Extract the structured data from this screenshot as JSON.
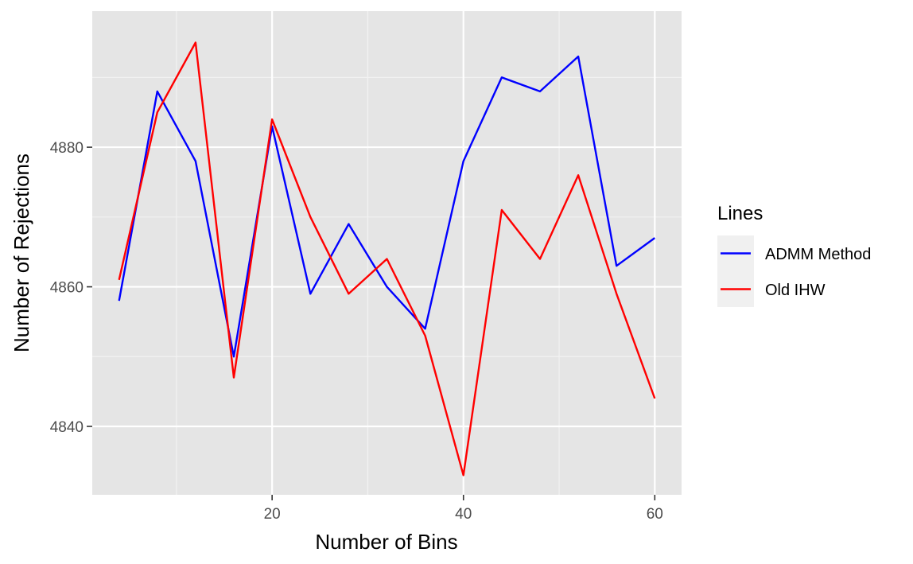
{
  "chart_data": {
    "type": "line",
    "xlabel": "Number of Bins",
    "ylabel": "Number of Rejections",
    "xlim": [
      1.2,
      62.8
    ],
    "ylim": [
      4830.2,
      4899.5
    ],
    "x_ticks": [
      20,
      40,
      60
    ],
    "x_minor_ticks": [
      10,
      30,
      50
    ],
    "y_ticks": [
      4840,
      4860,
      4880
    ],
    "y_minor_ticks": [
      4850,
      4870,
      4890
    ],
    "grid": true,
    "legend": {
      "title": "Lines",
      "placement": "right"
    },
    "x": [
      4,
      8,
      12,
      16,
      20,
      24,
      28,
      32,
      36,
      40,
      44,
      48,
      52,
      56,
      60
    ],
    "series": [
      {
        "name": "ADMM Method",
        "color": "#0000ff",
        "values": [
          4858,
          4888,
          4878,
          4850,
          4883,
          4859,
          4869,
          4860,
          4854,
          4878,
          4890,
          4888,
          4893,
          4863,
          4867
        ]
      },
      {
        "name": "Old IHW",
        "color": "#ff0000",
        "values": [
          4861,
          4885,
          4895,
          4847,
          4884,
          4870,
          4859,
          4864,
          4853,
          4833,
          4871,
          4864,
          4876,
          4859,
          4844
        ]
      }
    ]
  }
}
